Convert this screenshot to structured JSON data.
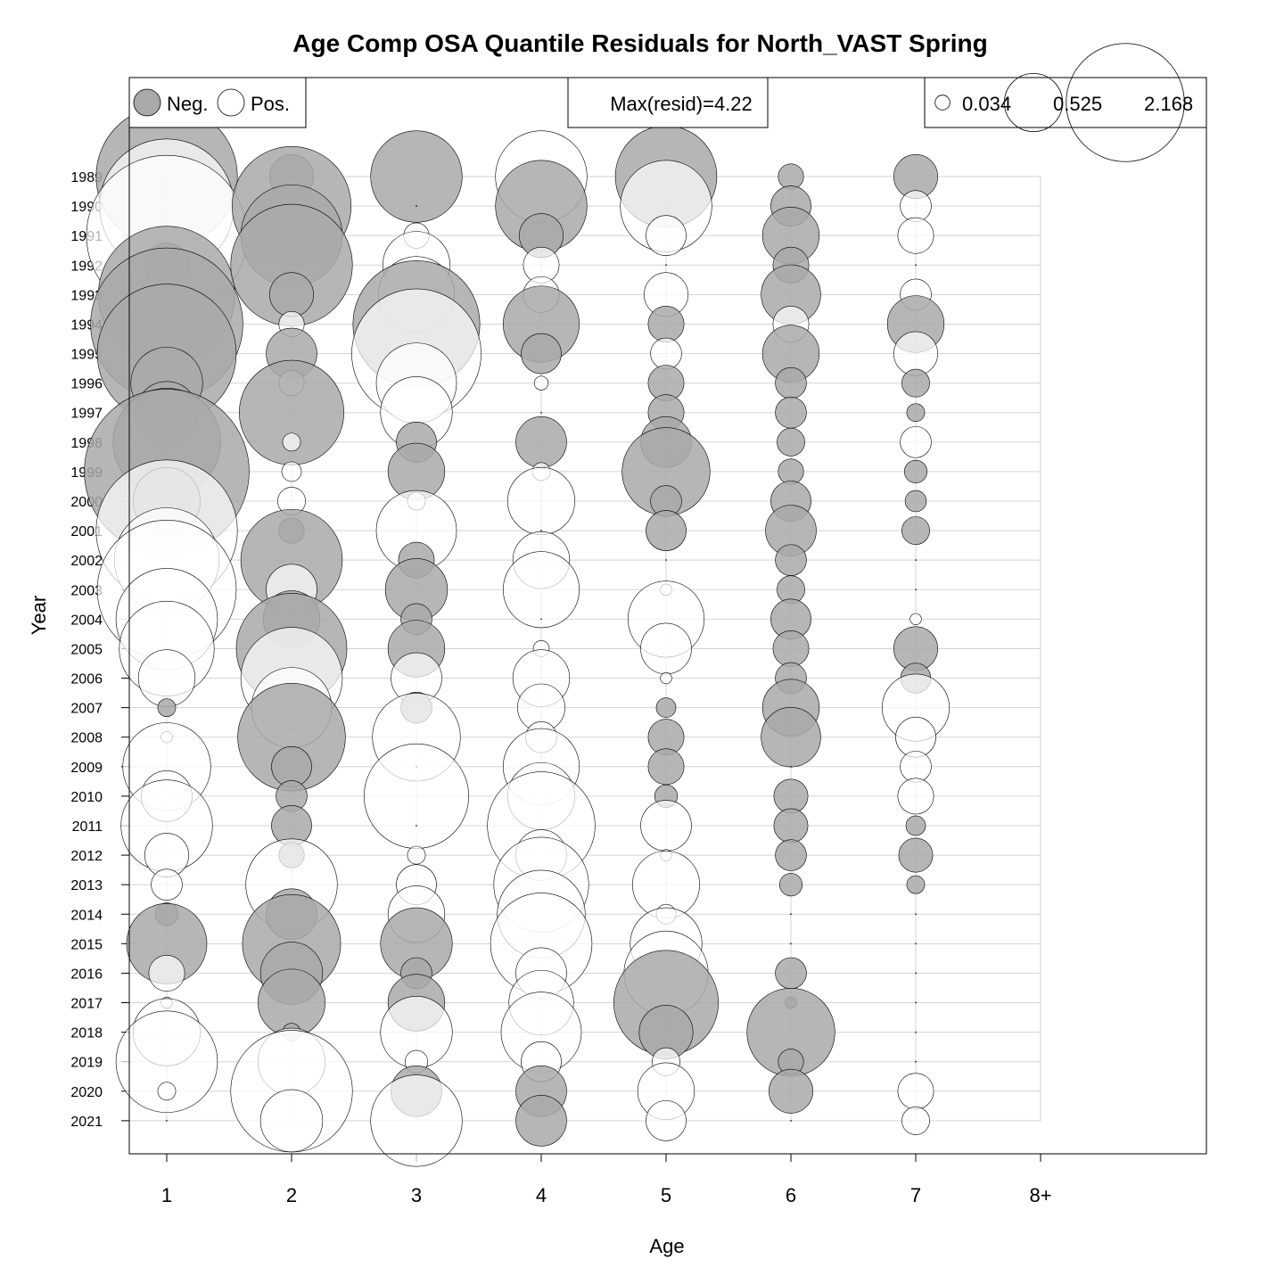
{
  "chart_data": {
    "type": "bubble",
    "title": "Age Comp OSA Quantile Residuals for North_VAST Spring",
    "xlabel": "Age",
    "ylabel": "Year",
    "ages": [
      "1",
      "2",
      "3",
      "4",
      "5",
      "6",
      "7",
      "8+"
    ],
    "years": [
      1989,
      1990,
      1991,
      1992,
      1993,
      1994,
      1995,
      1996,
      1997,
      1998,
      1999,
      2000,
      2001,
      2002,
      2003,
      2004,
      2005,
      2006,
      2007,
      2008,
      2009,
      2010,
      2011,
      2012,
      2013,
      2014,
      2015,
      2016,
      2017,
      2018,
      2019,
      2020,
      2021
    ],
    "grid": true,
    "max_resid_text": "Max(resid)=4.22",
    "legend_sign": {
      "neg_label": "Neg.",
      "pos_label": "Pos."
    },
    "legend_size": {
      "values": [
        0.034,
        0.525,
        2.168
      ],
      "labels": [
        "0.034",
        "0.525",
        "2.168"
      ]
    },
    "colors": {
      "neg_fill": "#a9a9a9",
      "pos_fill": "#ffffff",
      "stroke": "#000000",
      "grid": "#d3d3d3"
    },
    "residuals_by_age": {
      "1": [
        -3.1,
        2.8,
        4.0,
        -0.3,
        -2.9,
        -3.6,
        -3.0,
        -0.8,
        -0.6,
        -1.8,
        -4.22,
        -0.7,
        3.1,
        1.7,
        3.0,
        1.6,
        1.4,
        0.5,
        -0.05,
        0.02,
        1.2,
        0.4,
        1.3,
        0.3,
        0.15,
        -0.08,
        -1.0,
        0.2,
        0.02,
        0.7,
        1.6,
        0.05,
        0.0
      ],
      "2": [
        -0.3,
        -2.2,
        -1.6,
        -2.3,
        -0.3,
        0.1,
        -0.4,
        0.1,
        -1.7,
        0.05,
        0.06,
        0.12,
        -0.1,
        -1.6,
        0.4,
        -0.5,
        -1.9,
        1.6,
        1.0,
        -1.8,
        -0.25,
        -0.15,
        -0.25,
        -0.1,
        1.3,
        -0.4,
        -1.5,
        -0.6,
        -0.7,
        -0.05,
        0.7,
        2.3,
        0.6
      ],
      "3": [
        -1.3,
        0.0,
        0.1,
        0.7,
        0.9,
        -2.5,
        2.6,
        1.0,
        0.8,
        -0.25,
        -0.5,
        0.05,
        1.0,
        -0.2,
        -0.6,
        -0.15,
        -0.5,
        0.4,
        -0.15,
        1.2,
        0.0,
        1.7,
        0.0,
        0.05,
        0.25,
        0.5,
        -0.8,
        -0.15,
        -0.5,
        0.8,
        0.08,
        -0.4,
        1.3
      ],
      "4": [
        1.3,
        -1.3,
        -0.3,
        0.2,
        0.2,
        -0.9,
        -0.25,
        0.03,
        0.0,
        -0.4,
        0.05,
        0.7,
        0.0,
        0.5,
        0.9,
        0.0,
        0.04,
        0.5,
        0.35,
        0.15,
        0.9,
        0.7,
        1.8,
        0.4,
        1.4,
        1.2,
        1.6,
        0.4,
        0.65,
        1.0,
        0.25,
        -0.4,
        -0.4
      ],
      "5": [
        -1.6,
        1.3,
        0.25,
        0.0,
        0.3,
        -0.2,
        0.15,
        -0.2,
        -0.2,
        -0.4,
        -1.2,
        -0.15,
        -0.25,
        0.0,
        0.02,
        0.9,
        0.4,
        0.02,
        -0.06,
        -0.2,
        -0.2,
        -0.08,
        0.4,
        0.02,
        0.7,
        0.06,
        0.8,
        1.1,
        -1.7,
        -0.45,
        0.12,
        0.5,
        0.25
      ],
      "6": [
        -0.1,
        -0.25,
        -0.5,
        -0.2,
        -0.55,
        0.2,
        -0.5,
        -0.15,
        -0.15,
        -0.12,
        -0.1,
        -0.25,
        -0.4,
        -0.15,
        -0.12,
        -0.25,
        -0.2,
        -0.15,
        -0.5,
        -0.55,
        0.0,
        -0.18,
        -0.18,
        -0.15,
        -0.08,
        0.0,
        0.0,
        -0.15,
        -0.02,
        -1.2,
        -0.1,
        -0.3,
        0.0
      ],
      "7": [
        -0.3,
        0.15,
        0.2,
        0.0,
        0.15,
        -0.5,
        0.3,
        -0.12,
        -0.05,
        0.15,
        -0.08,
        -0.07,
        -0.12,
        0.0,
        0.0,
        0.02,
        -0.3,
        -0.14,
        0.7,
        0.25,
        0.15,
        0.2,
        -0.06,
        -0.18,
        -0.05,
        0.0,
        0.0,
        0.0,
        0.0,
        0.0,
        0.0,
        0.2,
        0.12
      ]
    }
  }
}
